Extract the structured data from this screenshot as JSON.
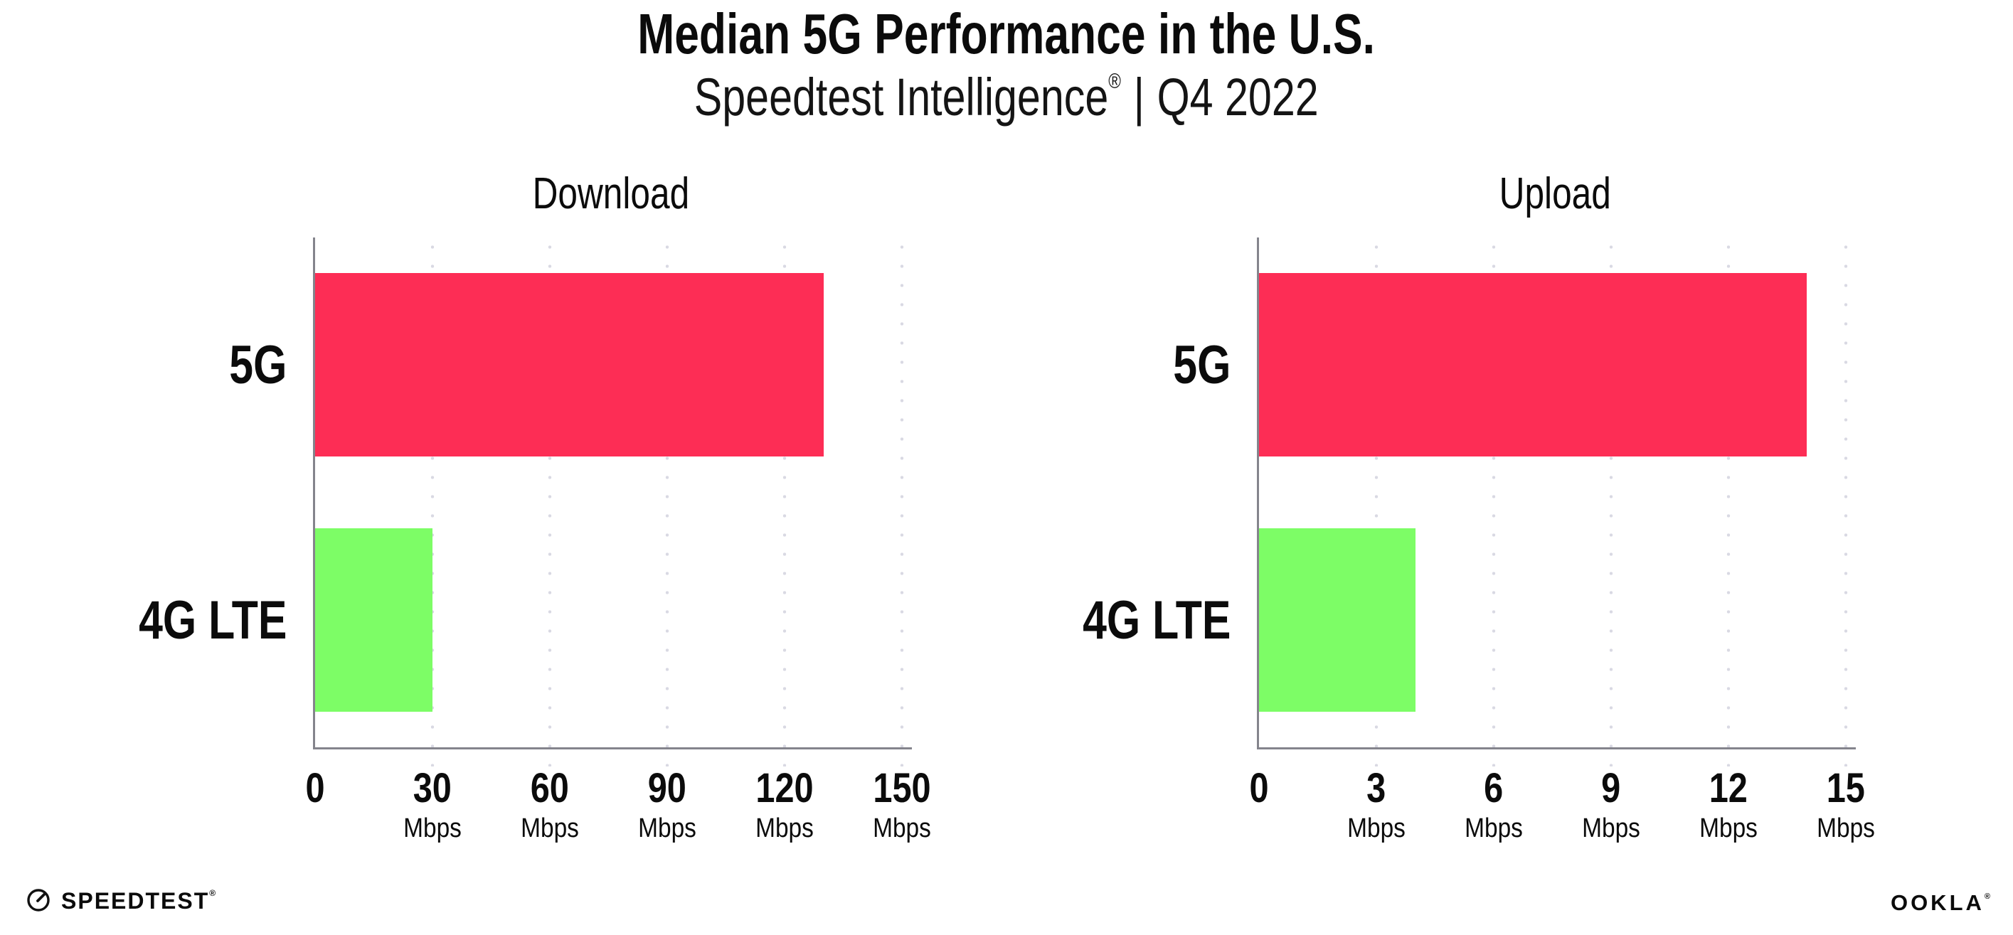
{
  "header": {
    "title": "Median 5G Performance in the U.S.",
    "subtitle_brand": "Speedtest Intelligence",
    "subtitle_reg": "®",
    "subtitle_sep": "|",
    "subtitle_period": "Q4 2022"
  },
  "colors": {
    "bar_5g": "#fd2d55",
    "bar_4g_lte": "#7dfd66",
    "axis": "#84848c",
    "gridline_dot": "#d9d9e3",
    "text": "#0b0b0b"
  },
  "footer": {
    "speedtest_label": "SPEEDTEST",
    "speedtest_tm": "®",
    "speedtest_icon": "gauge-icon",
    "ookla_label": "OOKLA",
    "ookla_tm": "®"
  },
  "chart_data": [
    {
      "type": "bar",
      "orientation": "horizontal",
      "title": "Download",
      "categories": [
        "5G",
        "4G LTE"
      ],
      "values": [
        130,
        30
      ],
      "unit": "Mbps",
      "bar_colors": [
        "#fd2d55",
        "#7dfd66"
      ],
      "xticks": [
        0,
        30,
        60,
        90,
        120,
        150
      ],
      "xlim": [
        0,
        151.3
      ],
      "grid": "vertical-dotted",
      "legend": "none"
    },
    {
      "type": "bar",
      "orientation": "horizontal",
      "title": "Upload",
      "categories": [
        "5G",
        "4G LTE"
      ],
      "values": [
        14,
        4
      ],
      "unit": "Mbps",
      "bar_colors": [
        "#fd2d55",
        "#7dfd66"
      ],
      "xticks": [
        0,
        3,
        6,
        9,
        12,
        15
      ],
      "xlim": [
        0,
        15.13
      ],
      "grid": "vertical-dotted",
      "legend": "none"
    }
  ]
}
